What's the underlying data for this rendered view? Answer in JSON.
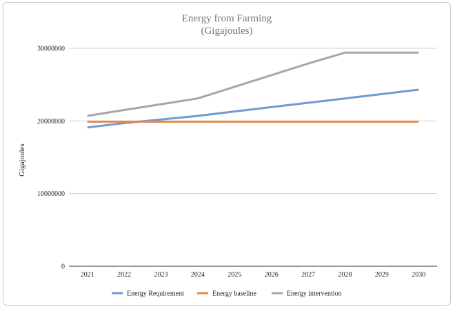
{
  "chart_data": {
    "type": "line",
    "title": "Energy from Farming",
    "subtitle": "(Gigajoules)",
    "xlabel": "",
    "ylabel": "Gigajoules",
    "categories": [
      "2021",
      "2022",
      "2023",
      "2024",
      "2025",
      "2026",
      "2027",
      "2028",
      "2029",
      "2030"
    ],
    "ylim": [
      0,
      30000000
    ],
    "yticks": [
      0,
      10000000,
      20000000,
      30000000
    ],
    "ytick_labels": [
      "0",
      "10000000",
      "20000000",
      "30000000"
    ],
    "grid": true,
    "legend_position": "bottom",
    "series": [
      {
        "name": "Energy Requirement",
        "color": "#6f9bd3",
        "values": [
          19100000,
          19700000,
          20200000,
          20700000,
          21300000,
          21900000,
          22500000,
          23100000,
          23700000,
          24300000
        ]
      },
      {
        "name": "Energy baseline",
        "color": "#e2894e",
        "values": [
          19900000,
          19900000,
          19900000,
          19900000,
          19900000,
          19900000,
          19900000,
          19900000,
          19900000,
          19900000
        ]
      },
      {
        "name": "Energy intervention",
        "color": "#a6a6a6",
        "values": [
          20700000,
          21500000,
          22300000,
          23100000,
          24700000,
          26300000,
          27900000,
          29400000,
          29400000,
          29400000
        ]
      }
    ]
  }
}
